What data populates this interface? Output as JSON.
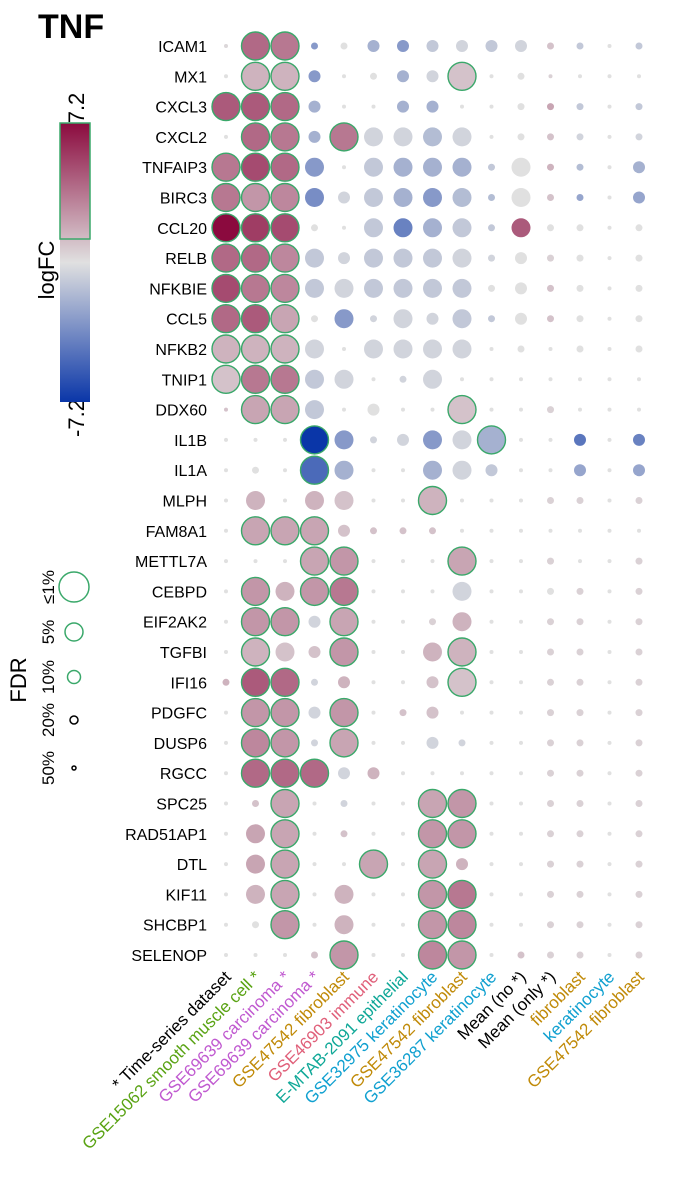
{
  "chart_data": {
    "type": "dot-matrix",
    "title": "TNF",
    "color_legend": {
      "title": "logFC",
      "max_label": "7.2",
      "min_label": "-7.2",
      "min": -7.2,
      "max": 7.2,
      "low_color": "#0a36a8",
      "mid_color": "#e0e0e0",
      "high_color": "#8b0a3e"
    },
    "size_legend": {
      "title": "FDR",
      "levels": [
        "50%",
        "20%",
        "10%",
        "5%",
        "≤1%"
      ],
      "outline_color": "#3aa86a"
    },
    "genes": [
      "ICAM1",
      "MX1",
      "CXCL3",
      "CXCL2",
      "TNFAIP3",
      "BIRC3",
      "CCL20",
      "RELB",
      "NFKBIE",
      "CCL5",
      "NFKB2",
      "TNIP1",
      "DDX60",
      "IL1B",
      "IL1A",
      "MLPH",
      "FAM8A1",
      "METTL7A",
      "CEBPD",
      "EIF2AK2",
      "TGFBI",
      "IFI16",
      "PDGFC",
      "DUSP6",
      "RGCC",
      "SPC25",
      "RAD51AP1",
      "DTL",
      "KIF11",
      "SHCBP1",
      "SELENOP"
    ],
    "columns": [
      {
        "label": "* Time-series dataset",
        "color": "#000000"
      },
      {
        "label": "GSE15062 smooth muscle cell *",
        "color": "#5aa314"
      },
      {
        "label": "GSE69639 carcinoma *",
        "color": "#c05ad0"
      },
      {
        "label": "GSE69639 carcinoma *",
        "color": "#c05ad0"
      },
      {
        "label": "GSE47542 fibroblast",
        "color": "#c08a08"
      },
      {
        "label": "GSE46903 immune",
        "color": "#e0607a"
      },
      {
        "label": "E-MTAB-2091 epithelial",
        "color": "#10a898"
      },
      {
        "label": "GSE32975 keratinocyte",
        "color": "#10a0d0"
      },
      {
        "label": "GSE47542 fibroblast",
        "color": "#c08a08"
      },
      {
        "label": "GSE36287 keratinocyte",
        "color": "#10a0d0"
      },
      {
        "label": "Mean (no *)",
        "color": "#000000"
      },
      {
        "label": "Mean (only *)",
        "color": "#000000"
      },
      {
        "label": "fibroblast",
        "color": "#c08a08"
      },
      {
        "label": "keratinocyte",
        "color": "#10a0d0"
      },
      {
        "label": "GSE47542 fibroblast",
        "color": "#c08a08"
      }
    ],
    "cells": [
      [
        0.3,
        4.0,
        3.5,
        -3.0,
        0,
        -2.0,
        -3.0,
        -1.0,
        -0.5,
        -1.0,
        -0.5,
        1.0,
        -1.0,
        0,
        -1.0
      ],
      [
        0,
        1.5,
        1.5,
        -3.0,
        0,
        0,
        -2.0,
        -0.5,
        1.0,
        0,
        0,
        0.5,
        0,
        0,
        0
      ],
      [
        4.5,
        4.5,
        4.0,
        -2.0,
        0,
        0,
        -2.0,
        -2.0,
        0,
        0,
        0,
        2.0,
        -1.0,
        0,
        -1.0
      ],
      [
        0,
        4.0,
        3.5,
        -2.0,
        3.5,
        -0.5,
        -0.5,
        -1.5,
        -0.5,
        0,
        0,
        1.0,
        -0.5,
        0,
        -0.5
      ],
      [
        3.5,
        5.0,
        4.0,
        -3.0,
        0,
        -1.0,
        -2.0,
        -2.0,
        -2.0,
        -1.0,
        0,
        1.5,
        -1.5,
        0,
        -2.0
      ],
      [
        3.5,
        2.5,
        3.0,
        -3.5,
        -0.5,
        -1.0,
        -2.0,
        -3.0,
        -1.5,
        -1.5,
        0,
        1.0,
        -2.5,
        0,
        -2.5
      ],
      [
        7.2,
        5.5,
        5.0,
        0,
        0,
        -1.0,
        -4.0,
        -2.0,
        -1.0,
        -1.0,
        4.5,
        0,
        0,
        0,
        0
      ],
      [
        4.0,
        4.0,
        3.0,
        -1.0,
        -0.5,
        -1.0,
        -1.0,
        -1.0,
        -0.5,
        -0.5,
        0,
        0.5,
        0,
        0,
        0
      ],
      [
        5.0,
        3.5,
        3.0,
        -1.0,
        -0.5,
        -1.0,
        -1.0,
        -1.0,
        -1.0,
        0,
        0,
        1.0,
        0,
        0,
        0
      ],
      [
        4.0,
        4.5,
        2.0,
        0,
        -3.0,
        -0.5,
        -0.5,
        -0.5,
        -1.0,
        -1.0,
        0,
        1.0,
        0,
        0,
        0
      ],
      [
        1.5,
        1.5,
        1.5,
        -0.5,
        0,
        -0.5,
        -0.5,
        -0.5,
        -0.5,
        0,
        0,
        0,
        0,
        0,
        0
      ],
      [
        1.0,
        3.5,
        3.5,
        -1.0,
        -0.5,
        0,
        -0.5,
        -0.5,
        0,
        0,
        0,
        0,
        0,
        0,
        0
      ],
      [
        1.0,
        2.0,
        2.0,
        -1.0,
        0,
        0,
        0,
        0,
        1.0,
        0,
        0,
        0.5,
        0,
        0,
        0
      ],
      [
        0,
        0,
        0,
        -7.2,
        -3.0,
        -0.5,
        -0.5,
        -3.0,
        -0.5,
        -2.0,
        0,
        0,
        -4.5,
        0,
        -4.0
      ],
      [
        0,
        0,
        0,
        -5.0,
        -2.0,
        0,
        0,
        -2.0,
        -0.5,
        -1.0,
        0,
        0,
        -2.5,
        0,
        -2.5
      ],
      [
        0,
        1.5,
        0,
        1.5,
        1.0,
        0,
        0,
        1.5,
        0,
        0,
        0,
        0.5,
        0.5,
        0,
        0.5
      ],
      [
        0,
        2.0,
        2.0,
        2.0,
        1.0,
        1.0,
        1.0,
        1.0,
        0,
        0,
        0,
        0,
        0,
        0,
        0
      ],
      [
        0,
        0,
        0,
        2.0,
        2.5,
        0,
        0,
        0,
        2.0,
        0,
        0,
        0.5,
        0,
        0,
        0.5
      ],
      [
        0,
        2.5,
        1.5,
        2.5,
        3.5,
        0,
        0,
        0,
        -0.5,
        0,
        0,
        0,
        0.5,
        0,
        0.5
      ],
      [
        0,
        2.5,
        2.5,
        -0.5,
        2.0,
        0,
        0,
        0.5,
        1.5,
        0,
        0,
        0.5,
        0.5,
        0,
        0.5
      ],
      [
        0,
        1.5,
        1.0,
        1.0,
        2.5,
        0,
        0,
        1.5,
        1.5,
        0,
        0,
        0.5,
        0.5,
        0,
        0.5
      ],
      [
        1.5,
        4.5,
        4.0,
        -0.5,
        1.5,
        0,
        0,
        1.0,
        1.0,
        0,
        0,
        0.5,
        0.5,
        0,
        0.5
      ],
      [
        0,
        2.5,
        2.5,
        -0.5,
        2.5,
        0,
        1.0,
        1.0,
        0,
        0,
        0,
        0.5,
        0.5,
        0,
        0.5
      ],
      [
        0,
        3.0,
        2.5,
        -0.5,
        2.0,
        0,
        0,
        -0.5,
        -0.5,
        0,
        0,
        0.5,
        0.5,
        0,
        0.5
      ],
      [
        0,
        4.0,
        4.0,
        4.0,
        -0.5,
        1.5,
        0,
        0,
        0,
        0,
        0,
        0.5,
        0.5,
        0,
        0.5
      ],
      [
        0,
        1.0,
        2.0,
        0,
        -0.5,
        0,
        0,
        2.0,
        2.5,
        0,
        0,
        0.5,
        0.5,
        0,
        0.5
      ],
      [
        0,
        2.0,
        2.0,
        0,
        1.0,
        0,
        0,
        2.5,
        2.5,
        0,
        0,
        0.5,
        0.5,
        0,
        0.5
      ],
      [
        0,
        2.0,
        2.0,
        0,
        0,
        2.0,
        0,
        2.0,
        1.5,
        0,
        0,
        0.5,
        0.5,
        0,
        0.5
      ],
      [
        0,
        1.5,
        2.0,
        0,
        1.5,
        0,
        0,
        2.5,
        3.5,
        0,
        0,
        0.5,
        0.5,
        0,
        0.5
      ],
      [
        0,
        0,
        2.5,
        0,
        1.5,
        0,
        0,
        2.5,
        3.0,
        0,
        0,
        0.5,
        0.5,
        0,
        0.5
      ],
      [
        0,
        0,
        0,
        1.0,
        2.5,
        0,
        0,
        3.0,
        2.5,
        0,
        1.0,
        0.5,
        0.5,
        0,
        0.5
      ]
    ],
    "significance": [
      [
        0,
        4,
        4,
        1,
        1,
        2,
        2,
        2,
        2,
        2,
        2,
        1,
        1,
        0,
        1
      ],
      [
        0,
        4,
        4,
        2,
        0,
        1,
        2,
        2,
        4,
        0,
        1,
        0,
        0,
        0,
        0
      ],
      [
        4,
        4,
        4,
        2,
        0,
        0,
        2,
        2,
        0,
        0,
        1,
        1,
        1,
        0,
        1
      ],
      [
        0,
        4,
        4,
        2,
        4,
        3,
        3,
        3,
        3,
        0,
        1,
        1,
        1,
        0,
        1
      ],
      [
        4,
        4,
        4,
        3,
        0,
        3,
        3,
        3,
        3,
        1,
        3,
        1,
        1,
        0,
        2
      ],
      [
        4,
        4,
        4,
        3,
        2,
        3,
        3,
        3,
        3,
        1,
        3,
        1,
        1,
        0,
        2
      ],
      [
        4,
        4,
        4,
        1,
        0,
        3,
        3,
        3,
        3,
        1,
        3,
        1,
        1,
        0,
        1
      ],
      [
        4,
        4,
        4,
        3,
        2,
        3,
        3,
        3,
        3,
        1,
        2,
        1,
        1,
        0,
        1
      ],
      [
        4,
        4,
        4,
        3,
        3,
        3,
        3,
        3,
        3,
        1,
        2,
        1,
        1,
        0,
        1
      ],
      [
        4,
        4,
        4,
        1,
        3,
        1,
        3,
        2,
        3,
        1,
        2,
        1,
        1,
        0,
        1
      ],
      [
        4,
        4,
        4,
        3,
        0,
        3,
        3,
        3,
        3,
        0,
        1,
        0,
        1,
        0,
        1
      ],
      [
        4,
        4,
        4,
        3,
        3,
        0,
        1,
        3,
        0,
        0,
        0,
        0,
        0,
        0,
        0
      ],
      [
        0,
        4,
        4,
        3,
        0,
        2,
        0,
        0,
        4,
        0,
        0,
        1,
        0,
        0,
        0
      ],
      [
        0,
        0,
        0,
        4,
        3,
        1,
        2,
        3,
        3,
        4,
        0,
        0,
        2,
        0,
        2
      ],
      [
        0,
        1,
        0,
        4,
        3,
        0,
        0,
        3,
        3,
        2,
        0,
        0,
        2,
        0,
        2
      ],
      [
        0,
        3,
        0,
        3,
        3,
        0,
        0,
        4,
        0,
        0,
        0,
        1,
        1,
        0,
        1
      ],
      [
        0,
        4,
        4,
        4,
        2,
        1,
        1,
        1,
        0,
        0,
        0,
        0,
        0,
        0,
        0
      ],
      [
        0,
        0,
        0,
        4,
        4,
        0,
        0,
        0,
        4,
        0,
        0,
        1,
        0,
        0,
        1
      ],
      [
        0,
        4,
        3,
        4,
        4,
        0,
        0,
        0,
        3,
        0,
        0,
        1,
        1,
        0,
        1
      ],
      [
        0,
        4,
        4,
        2,
        4,
        0,
        0,
        1,
        3,
        0,
        0,
        1,
        1,
        0,
        1
      ],
      [
        0,
        4,
        3,
        2,
        4,
        0,
        0,
        3,
        4,
        0,
        0,
        1,
        1,
        0,
        1
      ],
      [
        1,
        4,
        4,
        1,
        2,
        0,
        0,
        2,
        4,
        0,
        0,
        1,
        1,
        0,
        1
      ],
      [
        0,
        4,
        4,
        2,
        4,
        0,
        1,
        2,
        0,
        0,
        0,
        1,
        1,
        0,
        1
      ],
      [
        0,
        4,
        4,
        1,
        4,
        0,
        0,
        2,
        1,
        0,
        0,
        1,
        1,
        0,
        1
      ],
      [
        0,
        4,
        4,
        4,
        2,
        2,
        0,
        0,
        0,
        0,
        0,
        1,
        1,
        0,
        1
      ],
      [
        0,
        1,
        4,
        0,
        1,
        0,
        0,
        4,
        4,
        0,
        0,
        1,
        1,
        0,
        1
      ],
      [
        0,
        3,
        4,
        0,
        1,
        0,
        0,
        4,
        4,
        0,
        0,
        1,
        1,
        0,
        1
      ],
      [
        0,
        3,
        4,
        0,
        0,
        4,
        0,
        4,
        2,
        0,
        0,
        1,
        1,
        0,
        1
      ],
      [
        0,
        3,
        4,
        0,
        3,
        0,
        0,
        4,
        4,
        0,
        0,
        1,
        1,
        0,
        1
      ],
      [
        0,
        1,
        4,
        0,
        3,
        0,
        0,
        4,
        4,
        0,
        0,
        1,
        1,
        0,
        1
      ],
      [
        0,
        0,
        0,
        1,
        4,
        0,
        0,
        4,
        4,
        0,
        1,
        1,
        1,
        0,
        1
      ]
    ]
  }
}
